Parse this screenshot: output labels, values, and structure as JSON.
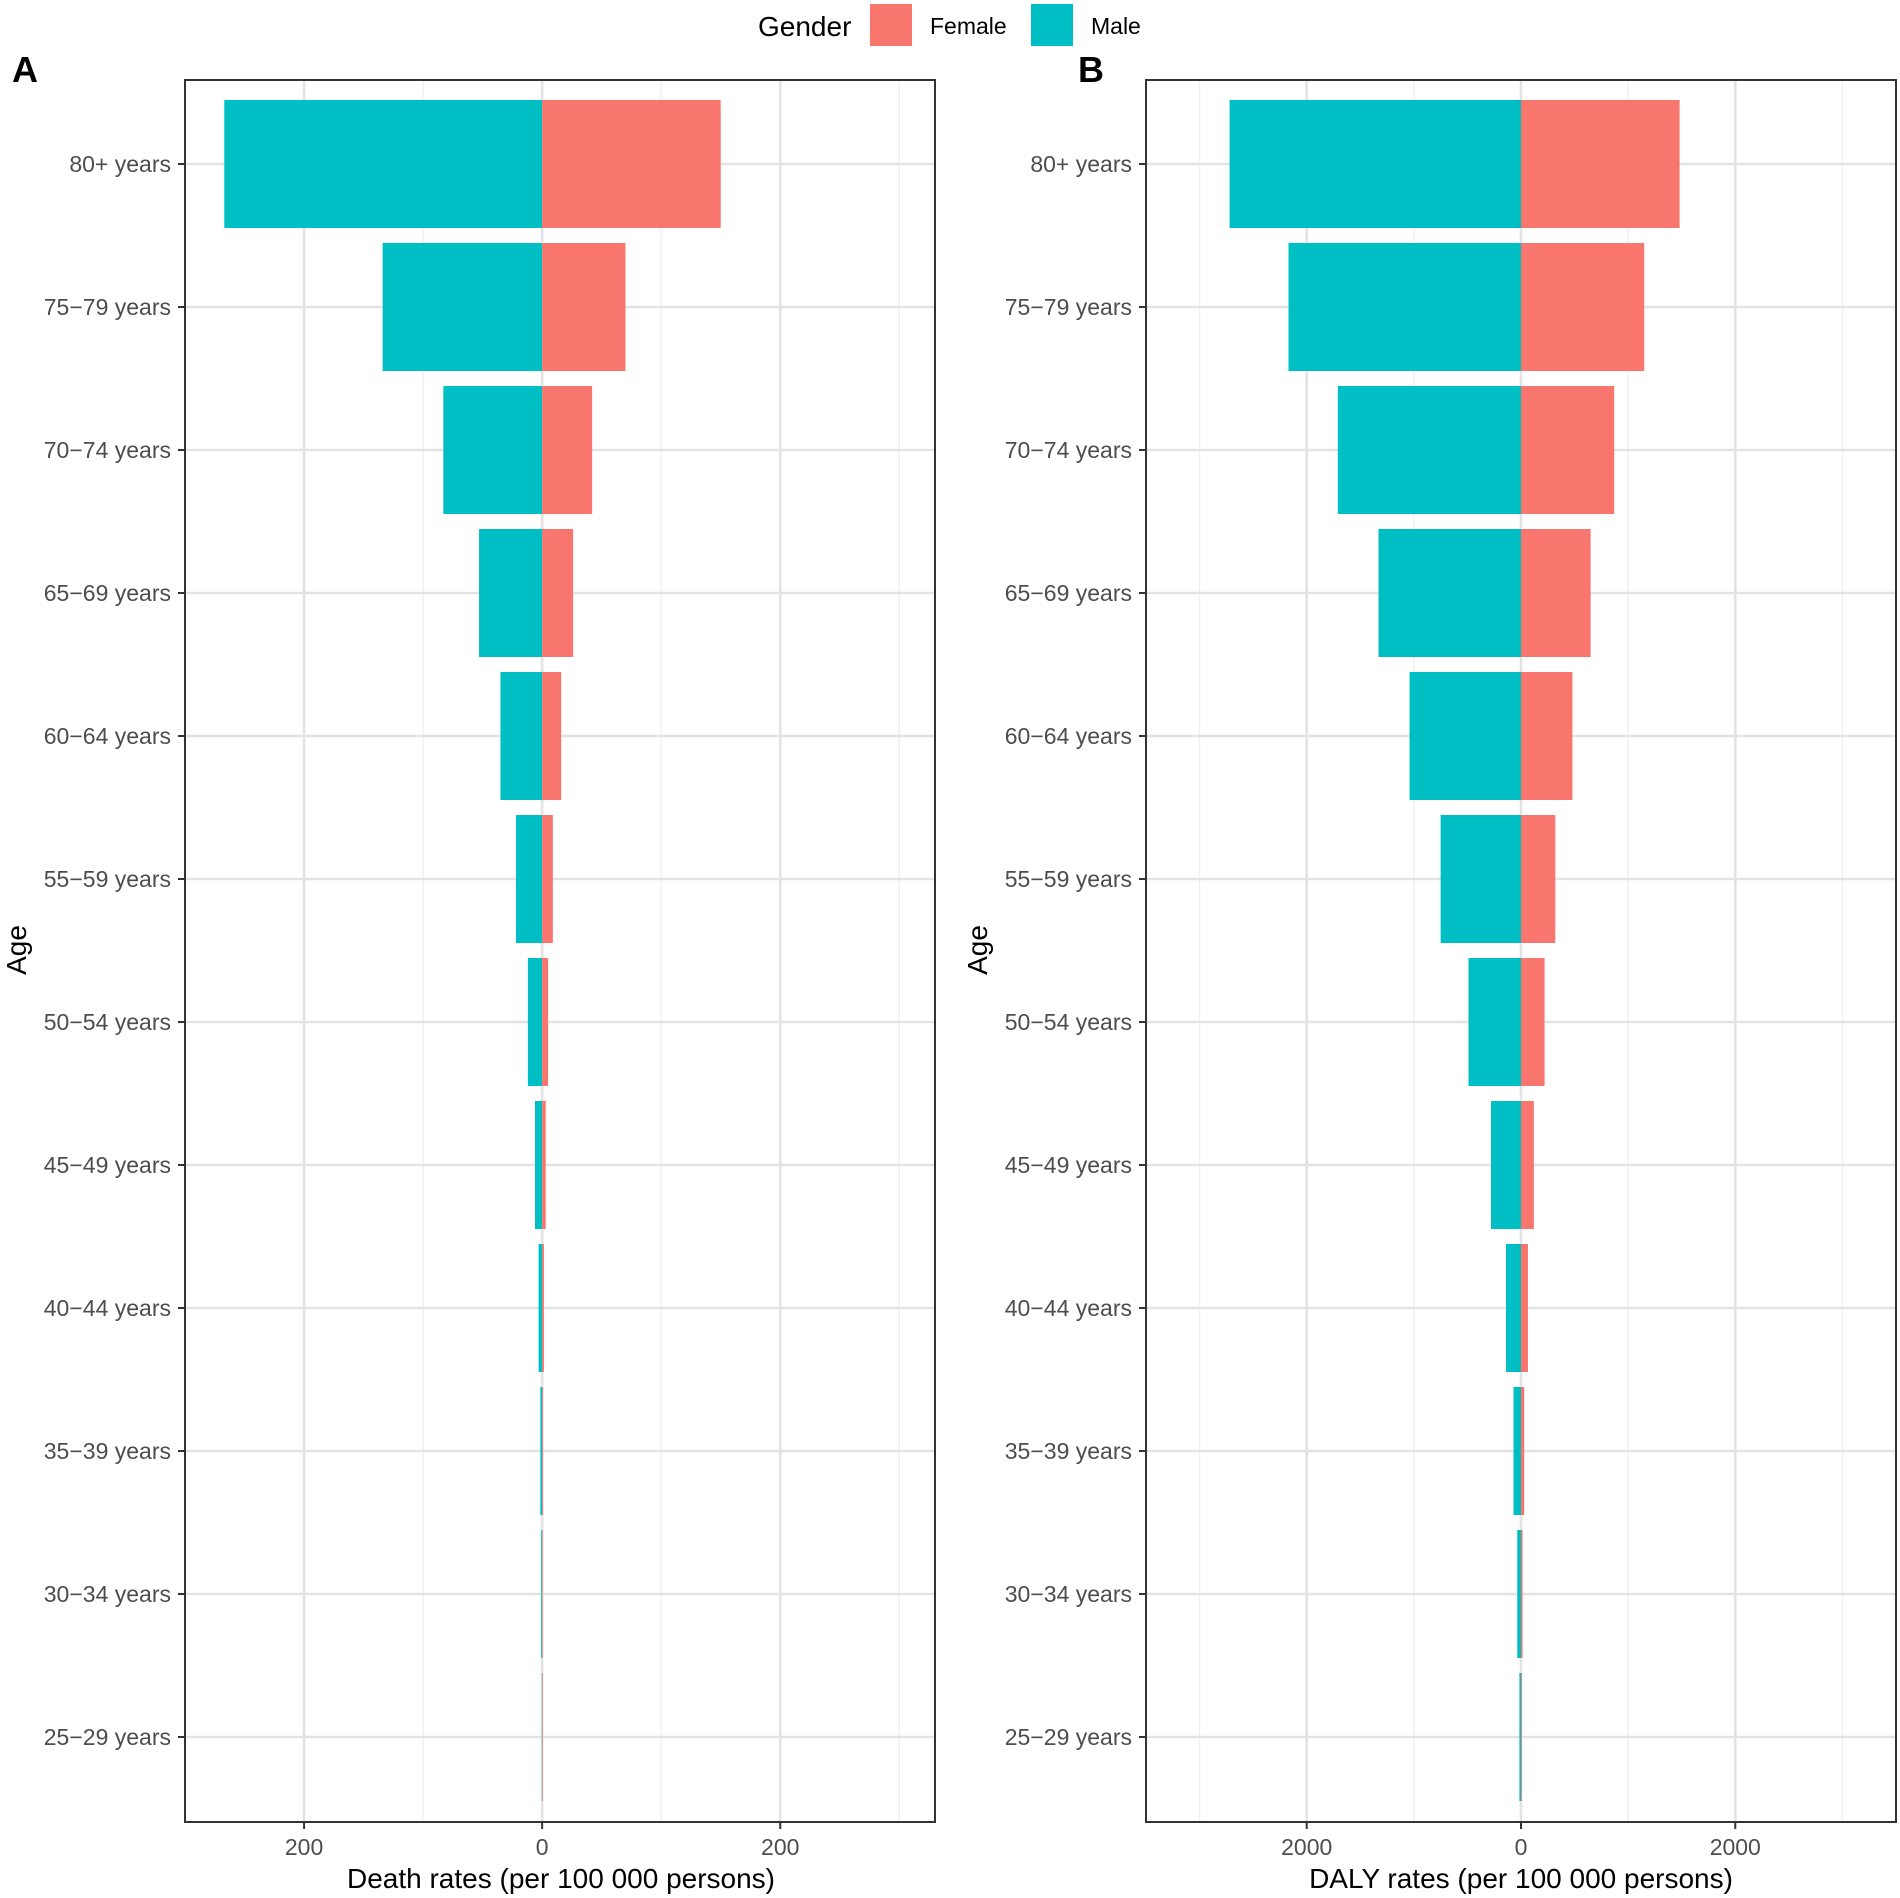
{
  "legend": {
    "title": "Gender",
    "items": [
      {
        "label": "Female",
        "color": "#F8766D"
      },
      {
        "label": "Male",
        "color": "#00BFC4"
      }
    ]
  },
  "chart_data": [
    {
      "type": "bar",
      "orientation": "horizontal-diverging",
      "panel_label": "A",
      "xlabel": "Death rates (per 100 000 persons)",
      "ylabel": "Age",
      "xlim": [
        -300,
        330
      ],
      "xticks": [
        -200,
        0,
        200
      ],
      "xtick_labels": [
        "200",
        "0",
        "200"
      ],
      "categories": [
        "80+ years",
        "75−79 years",
        "70−74 years",
        "65−69 years",
        "60−64 years",
        "55−59 years",
        "50−54 years",
        "45−49 years",
        "40−44 years",
        "35−39 years",
        "30−34 years",
        "25−29 years"
      ],
      "series": [
        {
          "name": "Female",
          "color": "#F8766D",
          "values": [
            150,
            70,
            42,
            26,
            16,
            9,
            5,
            3,
            1.5,
            0.8,
            0.3,
            0.1
          ]
        },
        {
          "name": "Male",
          "color": "#00BFC4",
          "values": [
            267,
            134,
            83,
            53,
            35,
            22,
            12,
            6,
            3,
            1.5,
            0.8,
            0.3
          ]
        }
      ]
    },
    {
      "type": "bar",
      "orientation": "horizontal-diverging",
      "panel_label": "B",
      "xlabel": "DALY rates (per 100 000 persons)",
      "ylabel": "Age",
      "xlim": [
        -3500,
        3500
      ],
      "xticks": [
        -2000,
        0,
        2000
      ],
      "xtick_labels": [
        "2000",
        "0",
        "2000"
      ],
      "categories": [
        "80+ years",
        "75−79 years",
        "70−74 years",
        "65−69 years",
        "60−64 years",
        "55−59 years",
        "50−54 years",
        "45−49 years",
        "40−44 years",
        "35−39 years",
        "30−34 years",
        "25−29 years"
      ],
      "series": [
        {
          "name": "Female",
          "color": "#F8766D",
          "values": [
            1480,
            1150,
            870,
            650,
            480,
            320,
            220,
            120,
            65,
            30,
            15,
            8
          ]
        },
        {
          "name": "Male",
          "color": "#00BFC4",
          "values": [
            2720,
            2170,
            1710,
            1330,
            1040,
            750,
            490,
            280,
            140,
            70,
            35,
            15
          ]
        }
      ]
    }
  ]
}
